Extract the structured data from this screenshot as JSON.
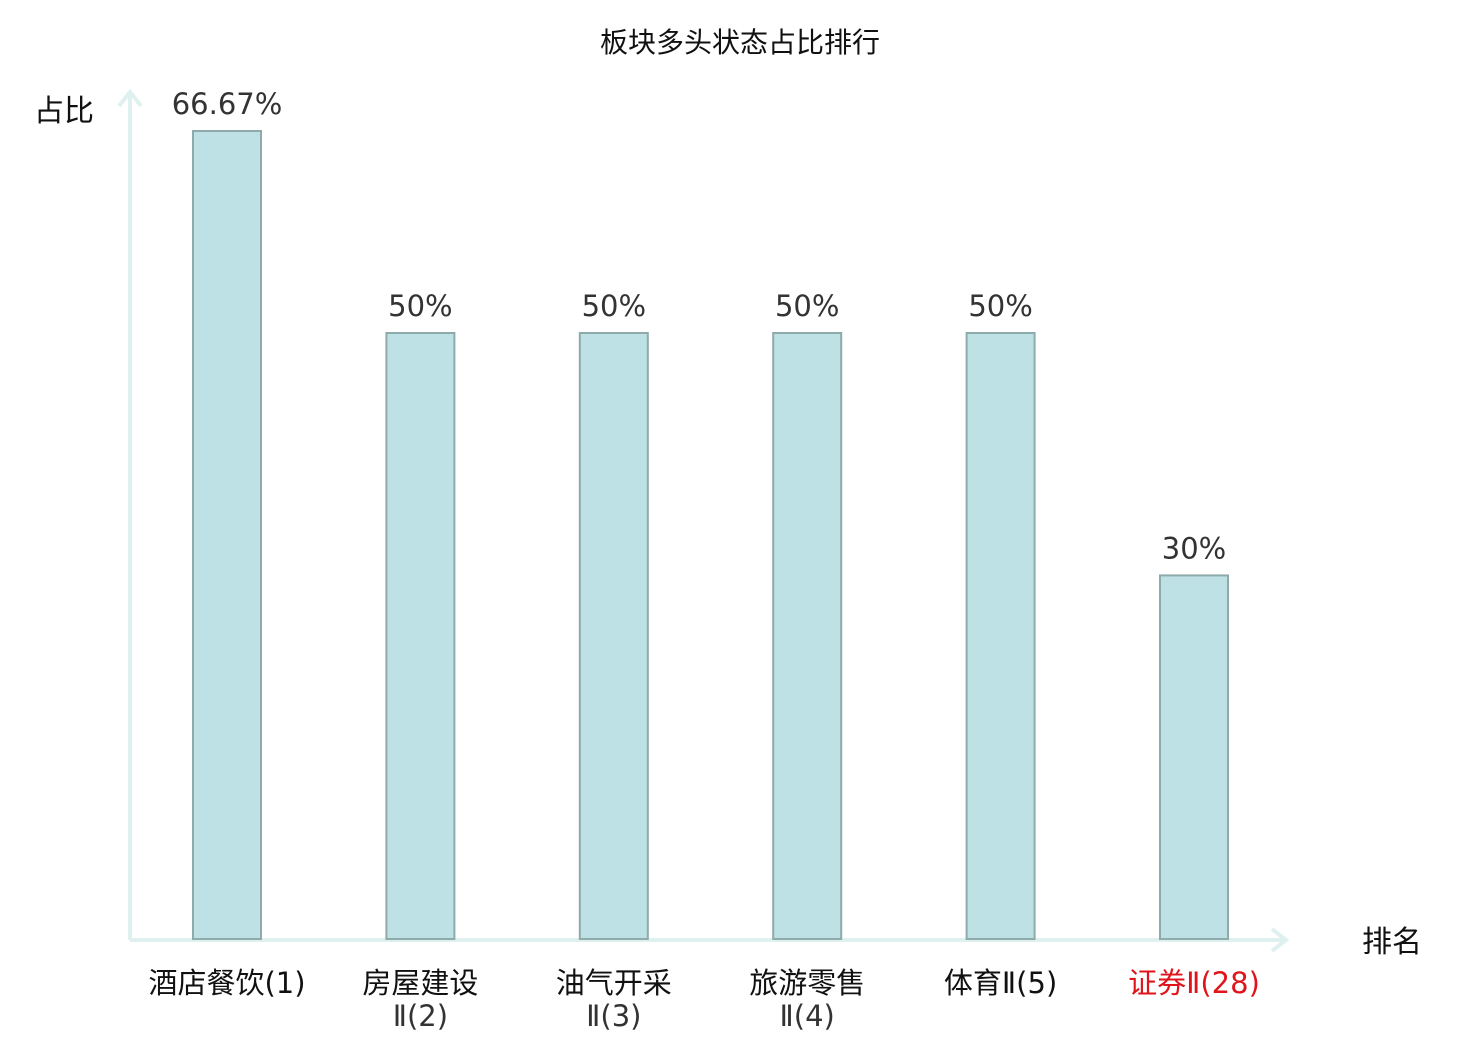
{
  "chart_data": {
    "type": "bar",
    "title": "板块多头状态占比排行",
    "ylabel": "占比",
    "xlabel": "排名",
    "ylim": [
      0,
      70
    ],
    "categories": [
      {
        "lines": [
          "酒店餐饮(1)"
        ],
        "highlight": false
      },
      {
        "lines": [
          "房屋建设",
          "Ⅱ(2)"
        ],
        "highlight": false
      },
      {
        "lines": [
          "油气开采",
          "Ⅱ(3)"
        ],
        "highlight": false
      },
      {
        "lines": [
          "旅游零售",
          "Ⅱ(4)"
        ],
        "highlight": false
      },
      {
        "lines": [
          "体育Ⅱ(5)"
        ],
        "highlight": false
      },
      {
        "lines": [
          "证券Ⅱ(28)"
        ],
        "highlight": true
      }
    ],
    "values": [
      66.67,
      50,
      50,
      50,
      50,
      30
    ],
    "value_labels": [
      "66.67%",
      "50%",
      "50%",
      "50%",
      "50%",
      "30%"
    ],
    "colors": {
      "bar_fill": "#bde1e4",
      "bar_stroke": "#8eaaab",
      "axis": "#dff1ee",
      "highlight_label": "#e0141a"
    }
  }
}
